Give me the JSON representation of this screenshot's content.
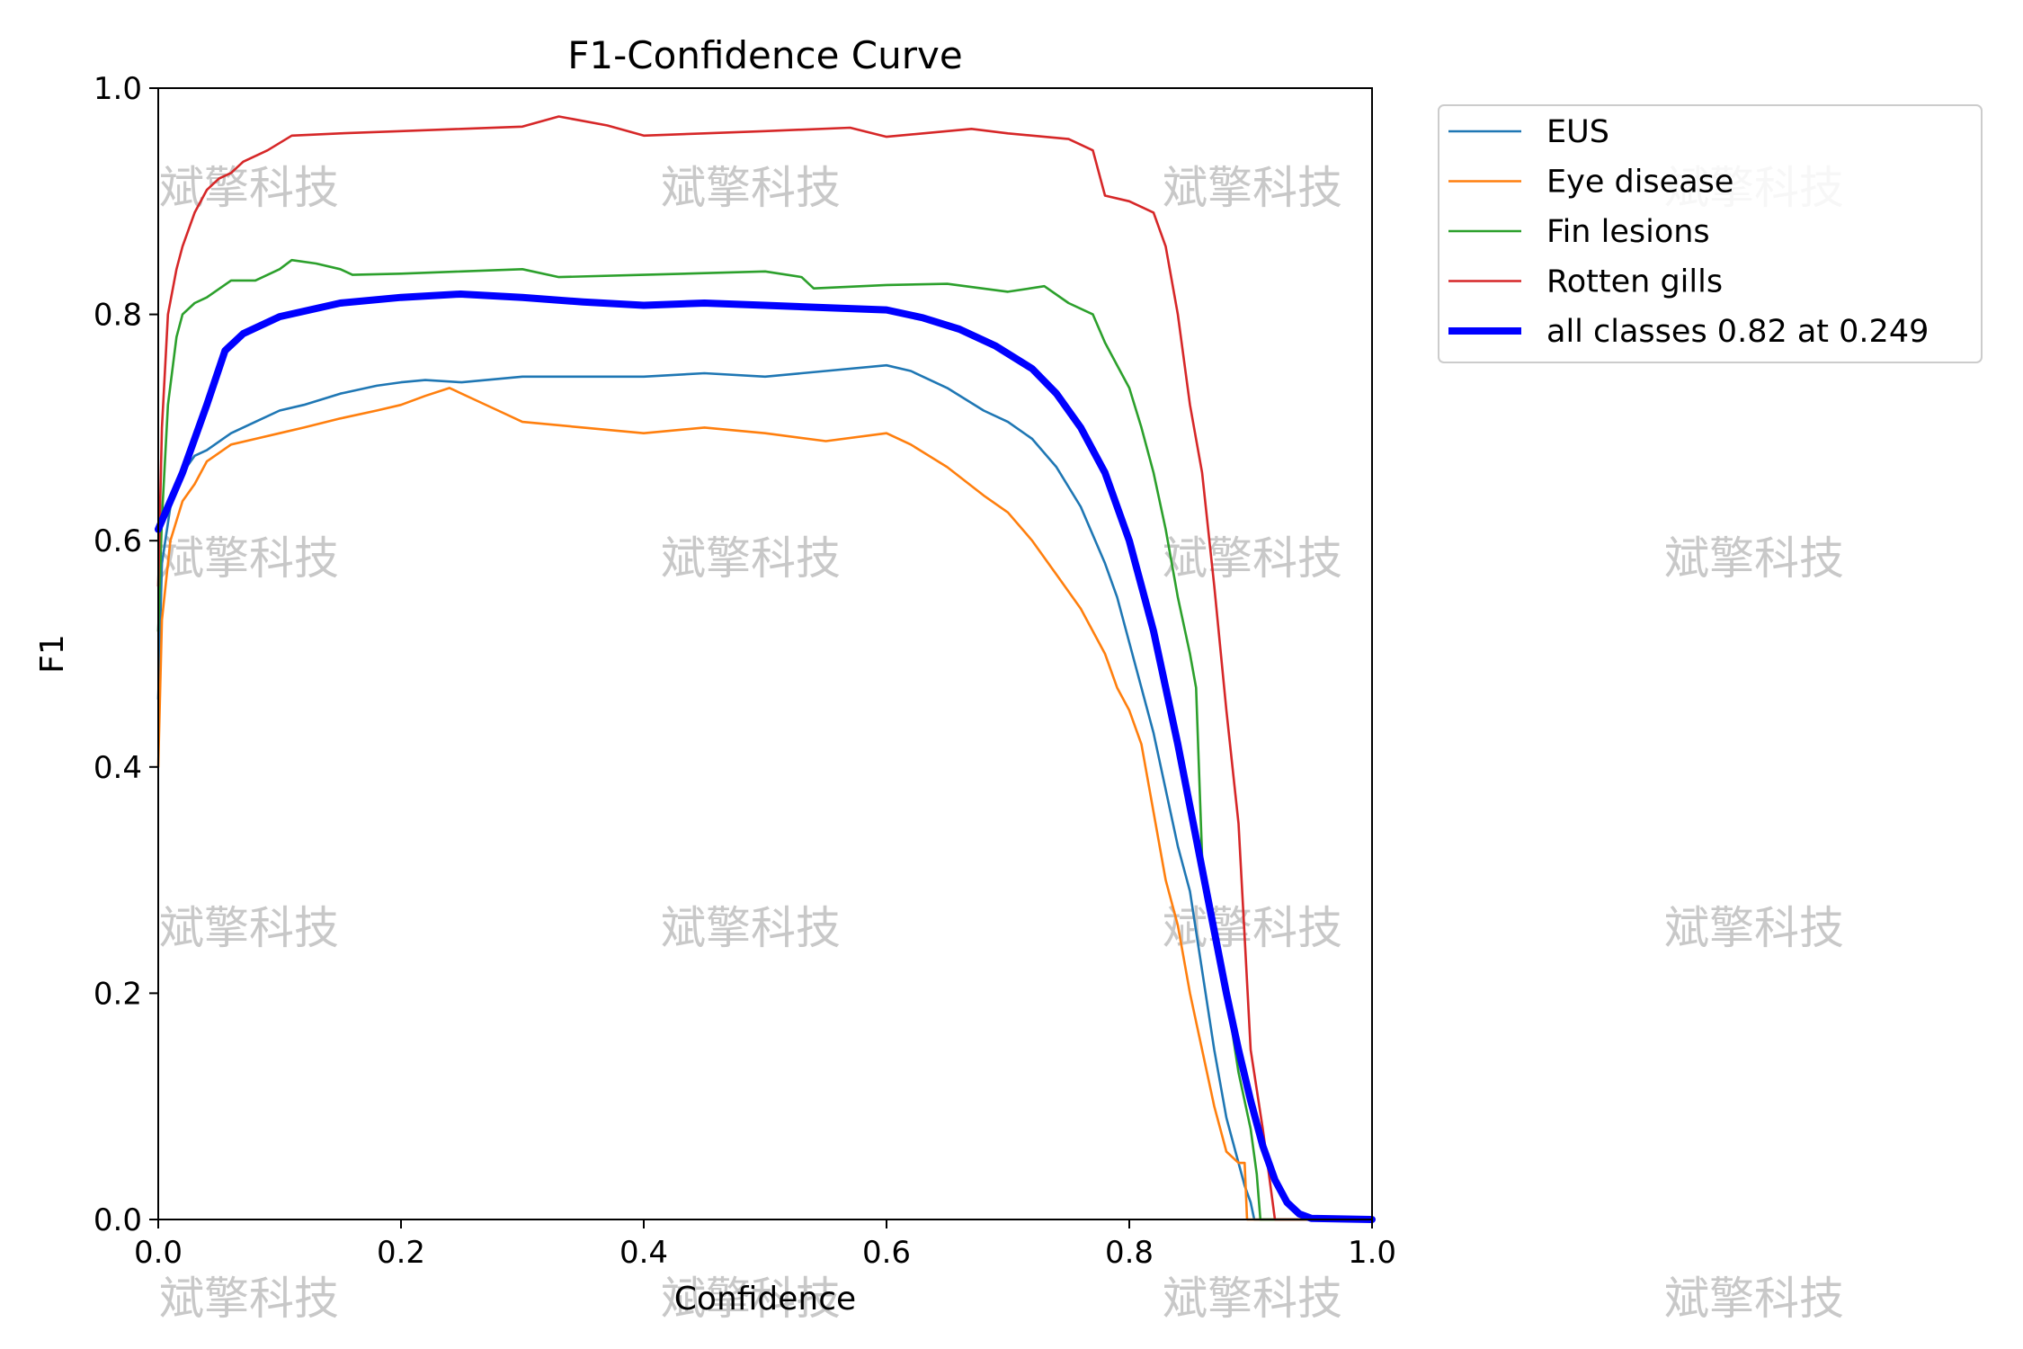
{
  "chart_data": {
    "type": "line",
    "title": "F1-Confidence Curve",
    "xlabel": "Confidence",
    "ylabel": "F1",
    "xlim": [
      0.0,
      1.0
    ],
    "ylim": [
      0.0,
      1.0
    ],
    "xticks": [
      "0.0",
      "0.2",
      "0.4",
      "0.6",
      "0.8",
      "1.0"
    ],
    "yticks": [
      "0.0",
      "0.2",
      "0.4",
      "0.6",
      "0.8",
      "1.0"
    ],
    "grid": false,
    "legend_position": "outside-top-right",
    "watermark_text": "斌擎科技",
    "series": [
      {
        "name": "EUS",
        "color": "#1f77b4",
        "width": "thin",
        "points": [
          [
            0.0,
            0.46
          ],
          [
            0.003,
            0.58
          ],
          [
            0.01,
            0.63
          ],
          [
            0.02,
            0.66
          ],
          [
            0.03,
            0.675
          ],
          [
            0.04,
            0.68
          ],
          [
            0.06,
            0.695
          ],
          [
            0.08,
            0.705
          ],
          [
            0.1,
            0.715
          ],
          [
            0.12,
            0.72
          ],
          [
            0.15,
            0.73
          ],
          [
            0.18,
            0.737
          ],
          [
            0.2,
            0.74
          ],
          [
            0.22,
            0.742
          ],
          [
            0.25,
            0.74
          ],
          [
            0.3,
            0.745
          ],
          [
            0.35,
            0.745
          ],
          [
            0.4,
            0.745
          ],
          [
            0.45,
            0.748
          ],
          [
            0.5,
            0.745
          ],
          [
            0.55,
            0.75
          ],
          [
            0.6,
            0.755
          ],
          [
            0.62,
            0.75
          ],
          [
            0.65,
            0.735
          ],
          [
            0.68,
            0.715
          ],
          [
            0.7,
            0.705
          ],
          [
            0.72,
            0.69
          ],
          [
            0.74,
            0.665
          ],
          [
            0.76,
            0.63
          ],
          [
            0.78,
            0.58
          ],
          [
            0.79,
            0.55
          ],
          [
            0.8,
            0.51
          ],
          [
            0.81,
            0.47
          ],
          [
            0.82,
            0.43
          ],
          [
            0.83,
            0.38
          ],
          [
            0.84,
            0.33
          ],
          [
            0.85,
            0.29
          ],
          [
            0.86,
            0.22
          ],
          [
            0.87,
            0.15
          ],
          [
            0.88,
            0.09
          ],
          [
            0.89,
            0.05
          ],
          [
            0.895,
            0.03
          ],
          [
            0.9,
            0.015
          ],
          [
            0.903,
            0.0
          ],
          [
            1.0,
            0.0
          ]
        ]
      },
      {
        "name": "Eye disease",
        "color": "#ff7f0e",
        "width": "thin",
        "points": [
          [
            0.0,
            0.4
          ],
          [
            0.003,
            0.53
          ],
          [
            0.01,
            0.6
          ],
          [
            0.02,
            0.635
          ],
          [
            0.03,
            0.65
          ],
          [
            0.04,
            0.67
          ],
          [
            0.06,
            0.685
          ],
          [
            0.08,
            0.69
          ],
          [
            0.1,
            0.695
          ],
          [
            0.12,
            0.7
          ],
          [
            0.15,
            0.708
          ],
          [
            0.18,
            0.715
          ],
          [
            0.2,
            0.72
          ],
          [
            0.22,
            0.728
          ],
          [
            0.24,
            0.735
          ],
          [
            0.26,
            0.725
          ],
          [
            0.28,
            0.715
          ],
          [
            0.3,
            0.705
          ],
          [
            0.35,
            0.7
          ],
          [
            0.4,
            0.695
          ],
          [
            0.45,
            0.7
          ],
          [
            0.5,
            0.695
          ],
          [
            0.55,
            0.688
          ],
          [
            0.6,
            0.695
          ],
          [
            0.62,
            0.685
          ],
          [
            0.65,
            0.665
          ],
          [
            0.68,
            0.64
          ],
          [
            0.7,
            0.625
          ],
          [
            0.72,
            0.6
          ],
          [
            0.74,
            0.57
          ],
          [
            0.76,
            0.54
          ],
          [
            0.78,
            0.5
          ],
          [
            0.79,
            0.47
          ],
          [
            0.8,
            0.45
          ],
          [
            0.81,
            0.42
          ],
          [
            0.82,
            0.36
          ],
          [
            0.83,
            0.3
          ],
          [
            0.84,
            0.26
          ],
          [
            0.85,
            0.2
          ],
          [
            0.86,
            0.15
          ],
          [
            0.87,
            0.1
          ],
          [
            0.88,
            0.06
          ],
          [
            0.89,
            0.05
          ],
          [
            0.895,
            0.05
          ],
          [
            0.897,
            0.0
          ],
          [
            1.0,
            0.0
          ]
        ]
      },
      {
        "name": "Fin lesions",
        "color": "#2ca02c",
        "width": "thin",
        "points": [
          [
            0.0,
            0.52
          ],
          [
            0.003,
            0.62
          ],
          [
            0.008,
            0.72
          ],
          [
            0.015,
            0.78
          ],
          [
            0.02,
            0.8
          ],
          [
            0.03,
            0.81
          ],
          [
            0.04,
            0.815
          ],
          [
            0.06,
            0.83
          ],
          [
            0.08,
            0.83
          ],
          [
            0.1,
            0.84
          ],
          [
            0.11,
            0.848
          ],
          [
            0.13,
            0.845
          ],
          [
            0.15,
            0.84
          ],
          [
            0.16,
            0.835
          ],
          [
            0.2,
            0.836
          ],
          [
            0.25,
            0.838
          ],
          [
            0.3,
            0.84
          ],
          [
            0.33,
            0.833
          ],
          [
            0.4,
            0.835
          ],
          [
            0.5,
            0.838
          ],
          [
            0.53,
            0.833
          ],
          [
            0.54,
            0.823
          ],
          [
            0.6,
            0.826
          ],
          [
            0.65,
            0.827
          ],
          [
            0.7,
            0.82
          ],
          [
            0.73,
            0.825
          ],
          [
            0.75,
            0.81
          ],
          [
            0.77,
            0.8
          ],
          [
            0.78,
            0.775
          ],
          [
            0.79,
            0.755
          ],
          [
            0.8,
            0.735
          ],
          [
            0.81,
            0.7
          ],
          [
            0.82,
            0.66
          ],
          [
            0.83,
            0.61
          ],
          [
            0.84,
            0.55
          ],
          [
            0.85,
            0.5
          ],
          [
            0.855,
            0.47
          ],
          [
            0.86,
            0.32
          ],
          [
            0.865,
            0.28
          ],
          [
            0.87,
            0.25
          ],
          [
            0.88,
            0.2
          ],
          [
            0.89,
            0.13
          ],
          [
            0.9,
            0.08
          ],
          [
            0.905,
            0.04
          ],
          [
            0.908,
            0.0
          ],
          [
            1.0,
            0.0
          ]
        ]
      },
      {
        "name": "Rotten gills",
        "color": "#d62728",
        "width": "thin",
        "points": [
          [
            0.0,
            0.56
          ],
          [
            0.003,
            0.7
          ],
          [
            0.008,
            0.8
          ],
          [
            0.015,
            0.84
          ],
          [
            0.02,
            0.86
          ],
          [
            0.03,
            0.89
          ],
          [
            0.04,
            0.91
          ],
          [
            0.05,
            0.92
          ],
          [
            0.06,
            0.925
          ],
          [
            0.07,
            0.935
          ],
          [
            0.09,
            0.945
          ],
          [
            0.11,
            0.958
          ],
          [
            0.15,
            0.96
          ],
          [
            0.2,
            0.962
          ],
          [
            0.25,
            0.964
          ],
          [
            0.3,
            0.966
          ],
          [
            0.33,
            0.975
          ],
          [
            0.37,
            0.967
          ],
          [
            0.4,
            0.958
          ],
          [
            0.45,
            0.96
          ],
          [
            0.5,
            0.962
          ],
          [
            0.57,
            0.965
          ],
          [
            0.6,
            0.957
          ],
          [
            0.67,
            0.964
          ],
          [
            0.7,
            0.96
          ],
          [
            0.75,
            0.955
          ],
          [
            0.77,
            0.945
          ],
          [
            0.78,
            0.905
          ],
          [
            0.8,
            0.9
          ],
          [
            0.82,
            0.89
          ],
          [
            0.83,
            0.86
          ],
          [
            0.84,
            0.8
          ],
          [
            0.85,
            0.72
          ],
          [
            0.86,
            0.66
          ],
          [
            0.87,
            0.56
          ],
          [
            0.88,
            0.45
          ],
          [
            0.89,
            0.35
          ],
          [
            0.895,
            0.25
          ],
          [
            0.9,
            0.15
          ],
          [
            0.91,
            0.08
          ],
          [
            0.915,
            0.04
          ],
          [
            0.92,
            0.0
          ],
          [
            1.0,
            0.0
          ]
        ]
      },
      {
        "name": "all classes 0.82 at 0.249",
        "color": "#0000ff",
        "width": "thick",
        "points": [
          [
            0.0,
            0.61
          ],
          [
            0.02,
            0.66
          ],
          [
            0.04,
            0.72
          ],
          [
            0.055,
            0.768
          ],
          [
            0.07,
            0.783
          ],
          [
            0.1,
            0.798
          ],
          [
            0.15,
            0.81
          ],
          [
            0.2,
            0.815
          ],
          [
            0.249,
            0.818
          ],
          [
            0.3,
            0.815
          ],
          [
            0.35,
            0.811
          ],
          [
            0.4,
            0.808
          ],
          [
            0.45,
            0.81
          ],
          [
            0.5,
            0.808
          ],
          [
            0.55,
            0.806
          ],
          [
            0.6,
            0.804
          ],
          [
            0.63,
            0.797
          ],
          [
            0.66,
            0.787
          ],
          [
            0.69,
            0.772
          ],
          [
            0.72,
            0.752
          ],
          [
            0.74,
            0.73
          ],
          [
            0.76,
            0.7
          ],
          [
            0.78,
            0.66
          ],
          [
            0.8,
            0.6
          ],
          [
            0.82,
            0.52
          ],
          [
            0.84,
            0.42
          ],
          [
            0.86,
            0.31
          ],
          [
            0.88,
            0.2
          ],
          [
            0.89,
            0.15
          ],
          [
            0.9,
            0.105
          ],
          [
            0.91,
            0.065
          ],
          [
            0.92,
            0.035
          ],
          [
            0.93,
            0.015
          ],
          [
            0.94,
            0.005
          ],
          [
            0.95,
            0.001
          ],
          [
            1.0,
            0.0
          ]
        ]
      }
    ]
  }
}
